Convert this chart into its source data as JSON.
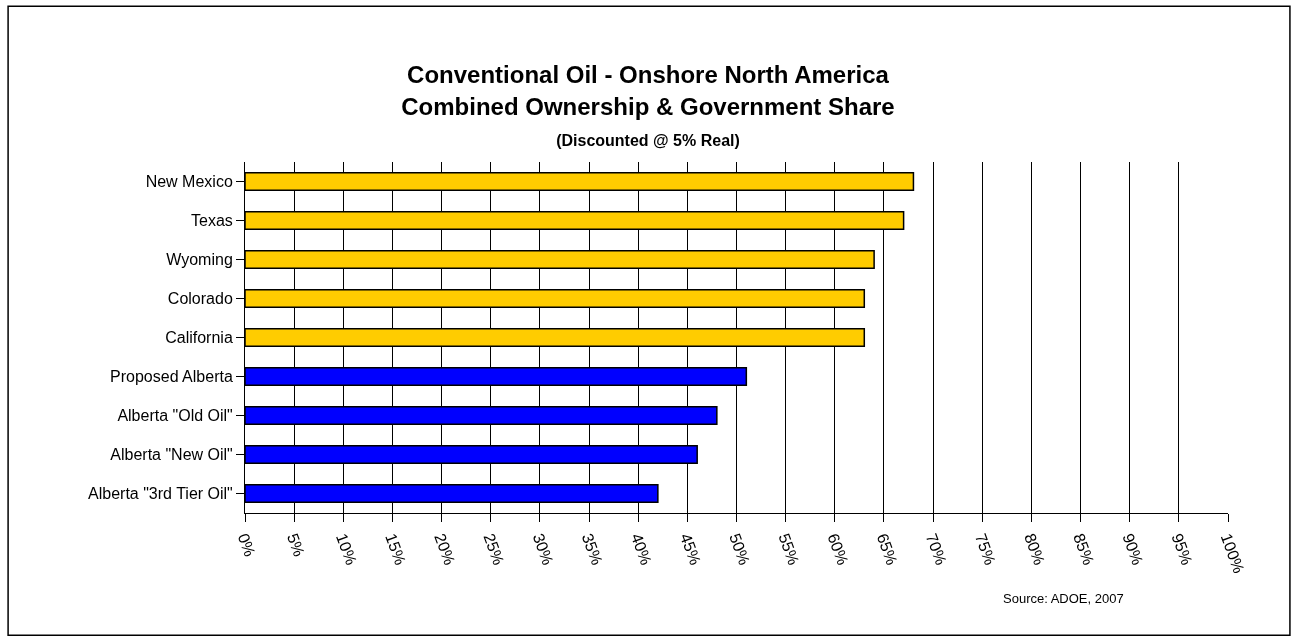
{
  "chart_data": {
    "type": "bar",
    "orientation": "horizontal",
    "title": "Conventional Oil - Onshore North America\nCombined Ownership & Government Share",
    "subtitle": "(Discounted @ 5% Real)",
    "categories": [
      "New Mexico",
      "Texas",
      "Wyoming",
      "Colorado",
      "California",
      "Proposed Alberta",
      "Alberta \"Old Oil\"",
      "Alberta \"New Oil\"",
      "Alberta \"3rd Tier Oil\""
    ],
    "values": [
      68,
      67,
      64,
      63,
      63,
      51,
      48,
      46,
      42
    ],
    "colors": [
      "#ffcc00",
      "#ffcc00",
      "#ffcc00",
      "#ffcc00",
      "#ffcc00",
      "#0000ff",
      "#0000ff",
      "#0000ff",
      "#0000ff"
    ],
    "xlim": [
      0,
      100
    ],
    "xticks": [
      {
        "value": 0,
        "label": "0%"
      },
      {
        "value": 5,
        "label": "5%"
      },
      {
        "value": 10,
        "label": "10%"
      },
      {
        "value": 15,
        "label": "15%"
      },
      {
        "value": 20,
        "label": "20%"
      },
      {
        "value": 25,
        "label": "25%"
      },
      {
        "value": 30,
        "label": "30%"
      },
      {
        "value": 35,
        "label": "35%"
      },
      {
        "value": 40,
        "label": "40%"
      },
      {
        "value": 45,
        "label": "45%"
      },
      {
        "value": 50,
        "label": "50%"
      },
      {
        "value": 55,
        "label": "55%"
      },
      {
        "value": 60,
        "label": "60%"
      },
      {
        "value": 65,
        "label": "65%"
      },
      {
        "value": 70,
        "label": "70%"
      },
      {
        "value": 75,
        "label": "75%"
      },
      {
        "value": 80,
        "label": "80%"
      },
      {
        "value": 85,
        "label": "85%"
      },
      {
        "value": 90,
        "label": "90%"
      },
      {
        "value": 95,
        "label": "95%"
      },
      {
        "value": 100,
        "label": "100%"
      }
    ],
    "grid": "x",
    "annotations": [
      "Source: ADOE, 2007"
    ]
  }
}
